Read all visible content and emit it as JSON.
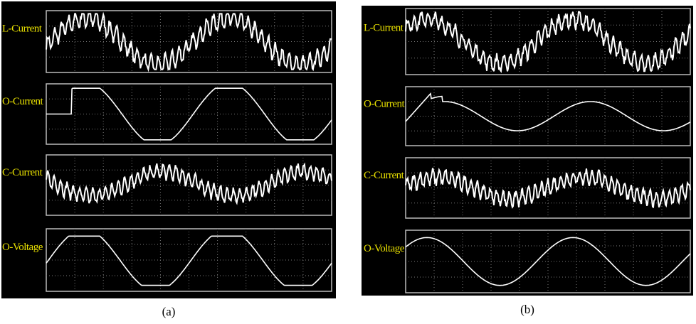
{
  "panels": [
    {
      "label": "(a)",
      "traces": [
        "L-Current",
        "O-Current",
        "C-Current",
        "O-Voltage"
      ]
    },
    {
      "label": "(b)",
      "traces": [
        "L-Current",
        "O-Current",
        "C-Current",
        "O-Voltage"
      ]
    }
  ]
}
